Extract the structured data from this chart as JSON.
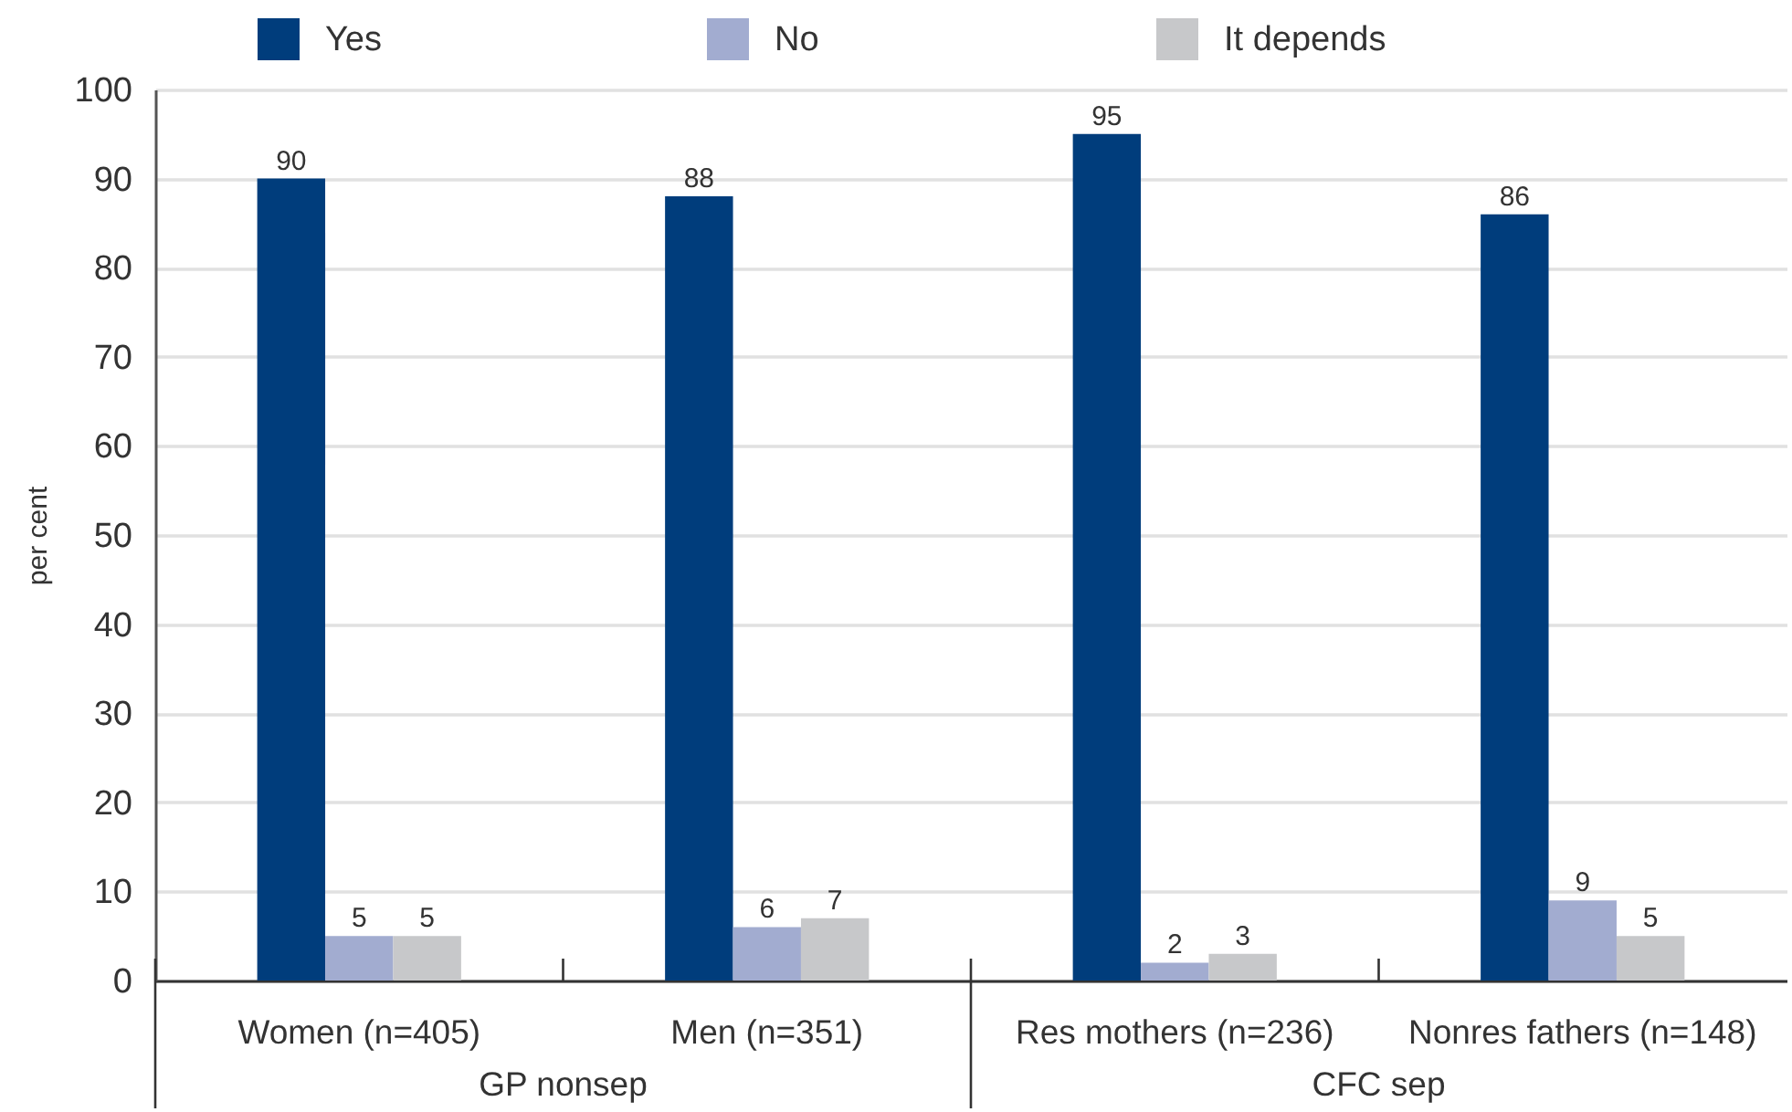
{
  "chart_data": {
    "type": "bar",
    "categories": [
      "Women (n=405)",
      "Men (n=351)",
      "Res mothers (n=236)",
      "Nonres fathers (n=148)"
    ],
    "series": [
      {
        "name": "Yes",
        "color": "#003d7c",
        "values": [
          90,
          88,
          95,
          86
        ]
      },
      {
        "name": "No",
        "color": "#a2acd0",
        "values": [
          5,
          6,
          2,
          9
        ]
      },
      {
        "name": "It depends",
        "color": "#c7c8ca",
        "values": [
          5,
          7,
          3,
          5
        ]
      }
    ],
    "ylabel": "per cent",
    "ylim": [
      0,
      100
    ],
    "yticks": [
      0,
      10,
      20,
      30,
      40,
      50,
      60,
      70,
      80,
      90,
      100
    ],
    "grid": "y",
    "legend": "top",
    "data_labels": true,
    "annotations": [
      "GP nonsep",
      "CFC sep"
    ]
  }
}
